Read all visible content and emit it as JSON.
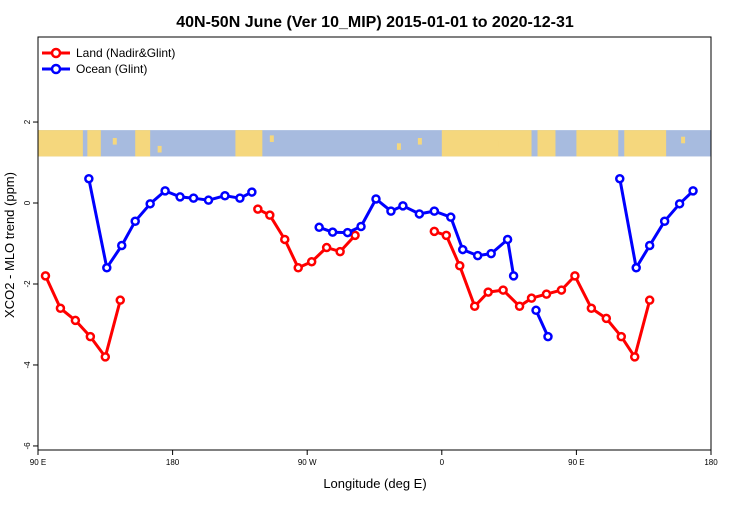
{
  "chart_data": {
    "type": "line",
    "title": "40N-50N June (Ver 10_MIP)   2015-01-01 to 2020-12-31",
    "xlabel": "Longitude (deg E)",
    "ylabel": "XCO2 - MLO trend (ppm)",
    "x_ticks": [
      {
        "value": 90,
        "label": "90 E"
      },
      {
        "value": 180,
        "label": "180"
      },
      {
        "value": 270,
        "label": "90 W"
      },
      {
        "value": 360,
        "label": "0"
      },
      {
        "value": 450,
        "label": "90 E"
      },
      {
        "value": 540,
        "label": "180"
      }
    ],
    "y_ticks": [
      -6,
      -4,
      -2,
      0,
      2
    ],
    "xlim": [
      90,
      540
    ],
    "ylim": [
      -6.1,
      4.1
    ],
    "grid": false,
    "legend_position": "top-left",
    "series": [
      {
        "name": "Land (Nadir&Glint)",
        "color": "#ff0000",
        "segments": [
          [
            [
              95,
              -1.8
            ],
            [
              105,
              -2.6
            ],
            [
              115,
              -2.9
            ],
            [
              125,
              -3.3
            ],
            [
              135,
              -3.8
            ],
            [
              145,
              -2.4
            ]
          ],
          [
            [
              237,
              -0.15
            ],
            [
              245,
              -0.3
            ],
            [
              255,
              -0.9
            ],
            [
              264,
              -1.6
            ],
            [
              273,
              -1.45
            ],
            [
              283,
              -1.1
            ],
            [
              292,
              -1.2
            ],
            [
              302,
              -0.8
            ]
          ],
          [
            [
              355,
              -0.7
            ],
            [
              363,
              -0.8
            ],
            [
              372,
              -1.55
            ],
            [
              382,
              -2.55
            ],
            [
              391,
              -2.2
            ],
            [
              401,
              -2.15
            ],
            [
              412,
              -2.55
            ],
            [
              420,
              -2.35
            ],
            [
              430,
              -2.25
            ],
            [
              440,
              -2.15
            ],
            [
              449,
              -1.8
            ],
            [
              460,
              -2.6
            ],
            [
              470,
              -2.85
            ],
            [
              480,
              -3.3
            ],
            [
              489,
              -3.8
            ],
            [
              499,
              -2.4
            ]
          ]
        ]
      },
      {
        "name": "Ocean (Glint)",
        "color": "#0000ff",
        "segments": [
          [
            [
              124,
              0.6
            ],
            [
              136,
              -1.6
            ],
            [
              146,
              -1.05
            ],
            [
              155,
              -0.45
            ],
            [
              165,
              -0.02
            ],
            [
              175,
              0.3
            ],
            [
              185,
              0.15
            ],
            [
              194,
              0.12
            ],
            [
              204,
              0.07
            ],
            [
              215,
              0.18
            ],
            [
              225,
              0.12
            ],
            [
              233,
              0.27
            ]
          ],
          [
            [
              278,
              -0.6
            ],
            [
              287,
              -0.72
            ],
            [
              297,
              -0.73
            ],
            [
              306,
              -0.58
            ],
            [
              316,
              0.1
            ],
            [
              326,
              -0.2
            ],
            [
              334,
              -0.07
            ],
            [
              345,
              -0.27
            ],
            [
              355,
              -0.2
            ],
            [
              366,
              -0.35
            ],
            [
              374,
              -1.15
            ],
            [
              384,
              -1.3
            ],
            [
              393,
              -1.25
            ],
            [
              404,
              -0.9
            ],
            [
              408,
              -1.8
            ]
          ],
          [
            [
              423,
              -2.65
            ],
            [
              431,
              -3.3
            ]
          ],
          [
            [
              479,
              0.6
            ],
            [
              490,
              -1.6
            ],
            [
              499,
              -1.05
            ],
            [
              509,
              -0.45
            ],
            [
              519,
              -0.02
            ],
            [
              528,
              0.3
            ]
          ]
        ]
      }
    ],
    "map_strip": {
      "y_range": [
        1.15,
        1.8
      ],
      "land_color": "#f5d77d",
      "ocean_color": "#a7bbdf"
    }
  }
}
